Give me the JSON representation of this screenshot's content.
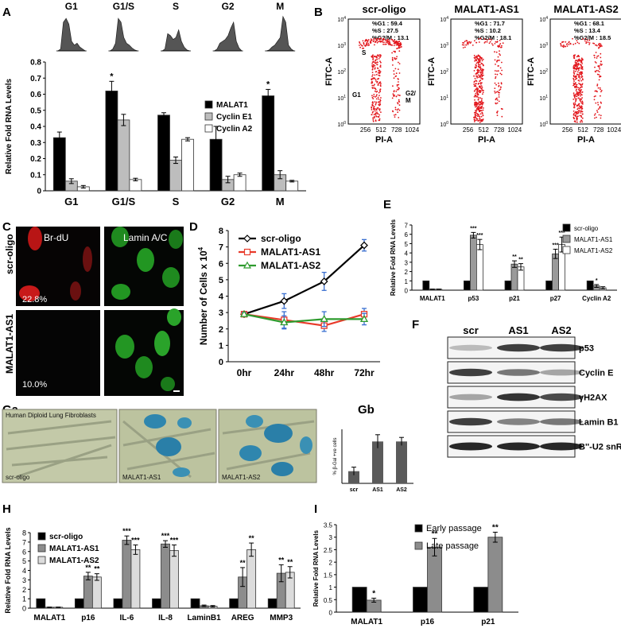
{
  "panel_labels": {
    "A": "A",
    "B": "B",
    "C": "C",
    "D": "D",
    "E": "E",
    "F": "F",
    "Ga": "Ga",
    "Gb": "Gb",
    "H": "H",
    "I": "I"
  },
  "chart_data": [
    {
      "id": "A",
      "type": "bar",
      "ylabel": "Relative Fold RNA Levels",
      "ylim": [
        0,
        0.8
      ],
      "yticks": [
        "0",
        "0.1",
        "0.2",
        "0.3",
        "0.4",
        "0.5",
        "0.6",
        "0.7",
        "0.8"
      ],
      "categories": [
        "G1",
        "G1/S",
        "S",
        "G2",
        "M"
      ],
      "histogram_labels": [
        "G1",
        "G1/S",
        "S",
        "G2",
        "M"
      ],
      "series": [
        {
          "name": "MALAT1",
          "color": "#000000",
          "values": [
            0.33,
            0.62,
            0.47,
            0.32,
            0.59
          ],
          "err": [
            0.035,
            0.06,
            0.015,
            0.08,
            0.04
          ]
        },
        {
          "name": "Cyclin E1",
          "color": "#bdbdbd",
          "values": [
            0.06,
            0.44,
            0.19,
            0.07,
            0.1
          ],
          "err": [
            0.015,
            0.035,
            0.02,
            0.02,
            0.025
          ]
        },
        {
          "name": "Cyclin A2",
          "color": "#ffffff",
          "values": [
            0.025,
            0.07,
            0.32,
            0.1,
            0.06
          ],
          "err": [
            0.008,
            0.008,
            0.01,
            0.01,
            0.005
          ]
        }
      ],
      "significance": [
        "",
        "*",
        "",
        "",
        "*"
      ]
    },
    {
      "id": "B",
      "type": "scatter",
      "xlabel": "PI-A",
      "ylabel": "FITC-A",
      "xticks": [
        "256",
        "512",
        "728",
        "1024"
      ],
      "yticks": [
        "10^0",
        "10^1",
        "10^2",
        "10^3",
        "10^4"
      ],
      "plots": [
        {
          "title": "scr-oligo",
          "stats": [
            "%G1      : 59.4",
            "%S        : 27.5",
            "%G2/M  : 13.1"
          ],
          "labels": {
            "s": "S",
            "g1": "G1",
            "g2m": "G2/\nM"
          }
        },
        {
          "title": "MALAT1-AS1",
          "stats": [
            "%G1      : 71.7",
            "%S        : 10.2",
            "%G2/M  : 18.1"
          ]
        },
        {
          "title": "MALAT1-AS2",
          "stats": [
            "%G1      : 68.1",
            "%S        : 13.4",
            "%G2/M  : 18.5"
          ]
        }
      ]
    },
    {
      "id": "D",
      "type": "line",
      "ylabel": "Number of Cells x 10^4",
      "ylim": [
        0,
        8
      ],
      "yticks": [
        "0",
        "1",
        "2",
        "3",
        "4",
        "5",
        "6",
        "7",
        "8"
      ],
      "x": [
        "0hr",
        "24hr",
        "48hr",
        "72hr"
      ],
      "series": [
        {
          "name": "scr-oligo",
          "color": "#000000",
          "values": [
            2.9,
            3.7,
            4.9,
            7.1
          ],
          "err": [
            0.15,
            0.45,
            0.55,
            0.35
          ]
        },
        {
          "name": "MALAT1-AS1",
          "color": "#e83a2a",
          "values": [
            2.9,
            2.55,
            2.2,
            2.9
          ],
          "err": [
            0.1,
            0.5,
            0.35,
            0.35
          ]
        },
        {
          "name": "MALAT1-AS2",
          "color": "#2e9b2e",
          "values": [
            2.9,
            2.4,
            2.6,
            2.6
          ],
          "err": [
            0.1,
            0.4,
            0.45,
            0.35
          ]
        }
      ]
    },
    {
      "id": "E",
      "type": "bar",
      "ylabel": "Relative Fold RNA Levels",
      "ylim": [
        0,
        7
      ],
      "yticks": [
        "0",
        "1",
        "2",
        "3",
        "4",
        "5",
        "6",
        "7"
      ],
      "categories": [
        "MALAT1",
        "p53",
        "p21",
        "p27",
        "Cyclin A2"
      ],
      "series": [
        {
          "name": "scr-oligo",
          "color": "#000000",
          "values": [
            1,
            1,
            1,
            1,
            1
          ],
          "err": [
            0,
            0,
            0,
            0,
            0
          ]
        },
        {
          "name": "MALAT1-AS1",
          "color": "#9a9a9a",
          "values": [
            0.1,
            5.9,
            2.8,
            3.9,
            0.45
          ],
          "err": [
            0.02,
            0.3,
            0.35,
            0.5,
            0.15
          ]
        },
        {
          "name": "MALAT1-AS2",
          "color": "#ffffff",
          "values": [
            0.1,
            4.9,
            2.5,
            4.9,
            0.25
          ],
          "err": [
            0.02,
            0.55,
            0.35,
            0.8,
            0.12
          ]
        }
      ],
      "significance": [
        [
          "",
          "",
          ""
        ],
        [
          "",
          "***",
          "***"
        ],
        [
          "",
          "**",
          "**"
        ],
        [
          "",
          "***",
          "***"
        ],
        [
          "",
          "*",
          ""
        ]
      ]
    },
    {
      "id": "Gb",
      "type": "bar",
      "ylabel": "% β-Gal +ve cells",
      "ylim": [
        0,
        40
      ],
      "categories": [
        "scr",
        "AS1",
        "AS2"
      ],
      "values": [
        9,
        31,
        31
      ],
      "err": [
        3,
        5,
        3
      ],
      "color": "#5a5a5a"
    },
    {
      "id": "H",
      "type": "bar",
      "ylabel": "Relative Fold RNA Levels",
      "ylim": [
        0,
        8
      ],
      "yticks": [
        "0",
        "1",
        "2",
        "3",
        "4",
        "5",
        "6",
        "7",
        "8"
      ],
      "categories": [
        "MALAT1",
        "p16",
        "IL-6",
        "IL-8",
        "LaminB1",
        "AREG",
        "MMP3"
      ],
      "series": [
        {
          "name": "scr-oligo",
          "color": "#000000",
          "values": [
            1,
            1,
            1,
            1,
            1,
            1,
            1
          ],
          "err": [
            0,
            0,
            0,
            0,
            0,
            0,
            0
          ]
        },
        {
          "name": "MALAT1-AS1",
          "color": "#8c8c8c",
          "values": [
            0.1,
            3.4,
            7.2,
            6.8,
            0.25,
            3.3,
            3.7
          ],
          "err": [
            0.02,
            0.4,
            0.45,
            0.35,
            0.08,
            1.0,
            0.9
          ]
        },
        {
          "name": "MALAT1-AS2",
          "color": "#dcdcdc",
          "values": [
            0.1,
            3.3,
            6.2,
            6.1,
            0.2,
            6.2,
            3.8
          ],
          "err": [
            0.02,
            0.35,
            0.5,
            0.6,
            0.08,
            0.7,
            0.6
          ]
        }
      ],
      "significance": [
        [
          "",
          "",
          ""
        ],
        [
          "",
          "**",
          "**"
        ],
        [
          "",
          "***",
          "***"
        ],
        [
          "",
          "***",
          "***"
        ],
        [
          "",
          "",
          ""
        ],
        [
          "",
          "**",
          "**"
        ],
        [
          "",
          "**",
          "**"
        ]
      ]
    },
    {
      "id": "I",
      "type": "bar",
      "ylabel": "Relative Fold RNA Levels",
      "ylim": [
        0,
        3.5
      ],
      "yticks": [
        "0",
        "0.5",
        "1",
        "1.5",
        "2",
        "2.5",
        "3",
        "3.5"
      ],
      "categories": [
        "MALAT1",
        "p16",
        "p21"
      ],
      "series": [
        {
          "name": "Early passage",
          "color": "#000000",
          "values": [
            1,
            1,
            1
          ],
          "err": [
            0,
            0,
            0
          ]
        },
        {
          "name": "Late passage",
          "color": "#8c8c8c",
          "values": [
            0.48,
            2.6,
            3.0
          ],
          "err": [
            0.08,
            0.35,
            0.2
          ]
        }
      ],
      "significance": [
        [
          "",
          "*"
        ],
        [
          "",
          "**"
        ],
        [
          "",
          "**"
        ]
      ]
    }
  ],
  "panel_C": {
    "col_labels": [
      "Br-dU",
      "Lamin A/C"
    ],
    "row_labels": [
      "scr-oligo",
      "MALAT1-AS1"
    ],
    "percents": [
      "22.8%",
      "10.0%"
    ],
    "colors": {
      "red": "#d21e1e",
      "green": "#2db42d",
      "bg": "#050505"
    }
  },
  "panel_F": {
    "columns": [
      "scr",
      "AS1",
      "AS2"
    ],
    "bands": [
      "p53",
      "Cyclin E",
      "γH2AX",
      "Lamin B1",
      "B''-U2 snRNP"
    ]
  },
  "panel_Ga": {
    "header": "Human Diploid Lung Fibroblasts",
    "labels": [
      "scr-oligo",
      "MALAT1-AS1",
      "MALAT1-AS2"
    ],
    "colors": {
      "bg": "#bfc7a4",
      "stain": "#2a7fa8"
    }
  }
}
